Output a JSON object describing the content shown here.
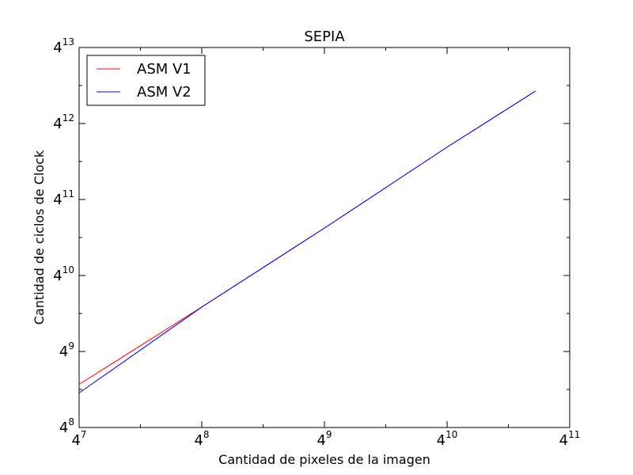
{
  "chart_data": {
    "type": "line",
    "title": "SEPIA",
    "xlabel": "Cantidad de pixeles de la imagen",
    "ylabel": "Cantidad de ciclos de Clock",
    "x_scale": "log4",
    "y_scale": "log4",
    "xlim": [
      16384,
      4194304
    ],
    "ylim": [
      65536,
      67108864
    ],
    "x_ticks": [
      {
        "base": "4",
        "exp": "7"
      },
      {
        "base": "4",
        "exp": "8"
      },
      {
        "base": "4",
        "exp": "9"
      },
      {
        "base": "4",
        "exp": "10"
      },
      {
        "base": "4",
        "exp": "11"
      }
    ],
    "y_ticks": [
      {
        "base": "4",
        "exp": "8"
      },
      {
        "base": "4",
        "exp": "9"
      },
      {
        "base": "4",
        "exp": "10"
      },
      {
        "base": "4",
        "exp": "11"
      },
      {
        "base": "4",
        "exp": "12"
      },
      {
        "base": "4",
        "exp": "13"
      }
    ],
    "grid": false,
    "legend_position": "top-left",
    "series": [
      {
        "name": "ASM V1",
        "color": "#ff0000",
        "x": [
          16384,
          65536,
          262144,
          1048576,
          2850000
        ],
        "y": [
          144000,
          589824,
          2490000,
          10900000,
          30300000
        ]
      },
      {
        "name": "ASM V2",
        "color": "#0000ff",
        "x": [
          16384,
          65536,
          262144,
          1048576,
          2850000
        ],
        "y": [
          123000,
          589824,
          2490000,
          10900000,
          30300000
        ]
      }
    ]
  }
}
